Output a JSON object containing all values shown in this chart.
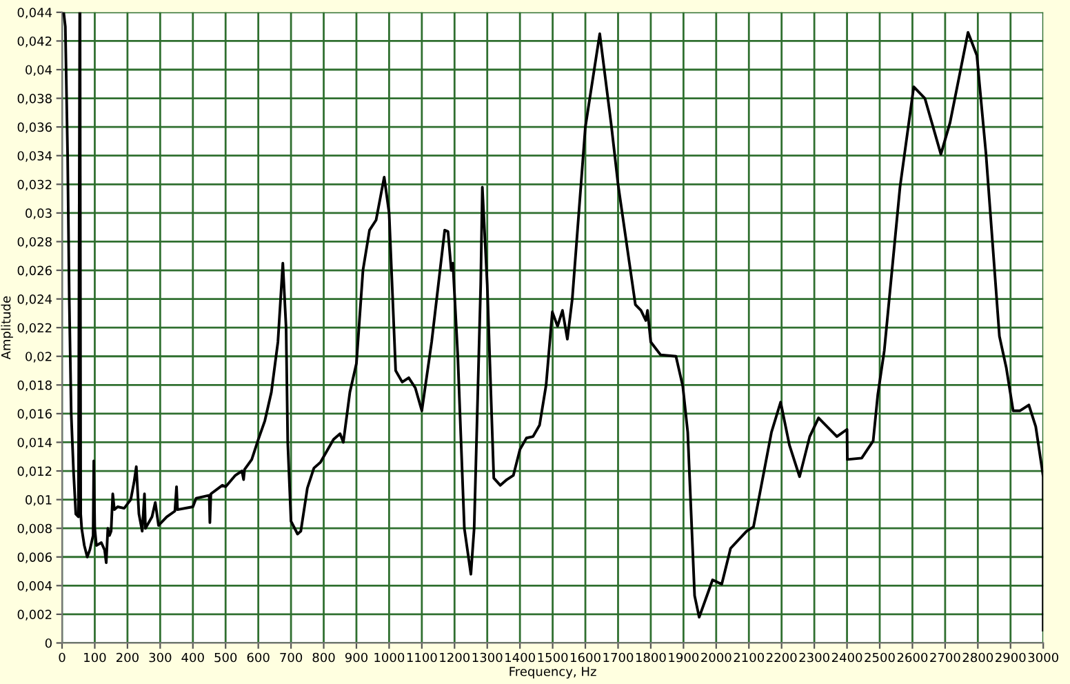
{
  "chart_data": {
    "type": "line",
    "xlabel": "Frequency, Hz",
    "ylabel": "Amplitude",
    "xlim": [
      0,
      3000
    ],
    "xticks": [
      0,
      100,
      200,
      300,
      400,
      500,
      600,
      700,
      800,
      900,
      1000,
      1100,
      1200,
      1300,
      1400,
      1500,
      1600,
      1700,
      1800,
      1900,
      2000,
      2100,
      2200,
      2300,
      2400,
      2500,
      2600,
      2700,
      2800,
      2900,
      3000
    ],
    "ylim": [
      0,
      0.044
    ],
    "yticks": [
      0,
      {
        "value": 0.002,
        "label": "0,002"
      },
      {
        "value": 0.004,
        "label": "0,004"
      },
      {
        "value": 0.006,
        "label": "0,006"
      },
      {
        "value": 0.008,
        "label": "0,008"
      },
      {
        "value": 0.01,
        "label": "0,01"
      },
      {
        "value": 0.012,
        "label": "0,012"
      },
      {
        "value": 0.014,
        "label": "0,014"
      },
      {
        "value": 0.016,
        "label": "0,016"
      },
      {
        "value": 0.018,
        "label": "0,018"
      },
      {
        "value": 0.02,
        "label": "0,02"
      },
      {
        "value": 0.022,
        "label": "0,022"
      },
      {
        "value": 0.024,
        "label": "0,024"
      },
      {
        "value": 0.026,
        "label": "0,026"
      },
      {
        "value": 0.028,
        "label": "0,028"
      },
      {
        "value": 0.03,
        "label": "0,03"
      },
      {
        "value": 0.032,
        "label": "0,032"
      },
      {
        "value": 0.034,
        "label": "0,034"
      },
      {
        "value": 0.036,
        "label": "0,036"
      },
      {
        "value": 0.038,
        "label": "0,038"
      },
      {
        "value": 0.04,
        "label": "0,04"
      },
      {
        "value": 0.042,
        "label": "0,042"
      },
      {
        "value": 0.044,
        "label": "0,044"
      }
    ],
    "grid": true,
    "marker": "none",
    "line_style": "solid",
    "series": [
      {
        "color": "#000000",
        "x": [
          5,
          10,
          17,
          22,
          28,
          35,
          42,
          50,
          54,
          55,
          57,
          60,
          68,
          77,
          85,
          95,
          97,
          100,
          105,
          120,
          130,
          135,
          140,
          145,
          150,
          155,
          160,
          170,
          190,
          210,
          220,
          227,
          235,
          245,
          252,
          255,
          275,
          285,
          295,
          320,
          345,
          350,
          353,
          400,
          410,
          450,
          452,
          455,
          490,
          500,
          530,
          550,
          555,
          558,
          580,
          600,
          620,
          640,
          660,
          675,
          685,
          690,
          700,
          720,
          730,
          750,
          770,
          790,
          830,
          850,
          860,
          880,
          900,
          920,
          940,
          960,
          985,
          1000,
          1020,
          1040,
          1060,
          1080,
          1100,
          1130,
          1170,
          1180,
          1190,
          1195,
          1210,
          1230,
          1250,
          1260,
          1280,
          1285,
          1300,
          1320,
          1340,
          1360,
          1380,
          1400,
          1420,
          1440,
          1460,
          1480,
          1499,
          1515,
          1530,
          1545,
          1560,
          1600,
          1644,
          1680,
          1700,
          1753,
          1770,
          1785,
          1790,
          1800,
          1830,
          1877,
          1898,
          1913,
          1934,
          1948,
          1989,
          2017,
          2044,
          2093,
          2114,
          2169,
          2197,
          2224,
          2255,
          2286,
          2313,
          2369,
          2400,
          2401,
          2445,
          2480,
          2494,
          2514,
          2562,
          2604,
          2638,
          2687,
          2715,
          2770,
          2797,
          2825,
          2866,
          2887,
          2908,
          2929,
          2956,
          2977,
          3000,
          3000
        ],
        "values": [
          0.044,
          0.043,
          0.034,
          0.024,
          0.016,
          0.012,
          0.009,
          0.0088,
          0.044,
          0.044,
          0.009,
          0.008,
          0.0068,
          0.006,
          0.0065,
          0.0075,
          0.0127,
          0.008,
          0.0068,
          0.007,
          0.0065,
          0.0056,
          0.008,
          0.0075,
          0.0078,
          0.0104,
          0.0093,
          0.0095,
          0.0094,
          0.01,
          0.0112,
          0.0123,
          0.009,
          0.0078,
          0.0104,
          0.008,
          0.0088,
          0.0098,
          0.0082,
          0.0088,
          0.0092,
          0.0109,
          0.0093,
          0.0095,
          0.0101,
          0.0103,
          0.0084,
          0.0104,
          0.011,
          0.0109,
          0.0117,
          0.012,
          0.0114,
          0.0121,
          0.0128,
          0.0142,
          0.0155,
          0.0175,
          0.021,
          0.0265,
          0.022,
          0.014,
          0.0085,
          0.0076,
          0.0078,
          0.0108,
          0.0122,
          0.0126,
          0.0142,
          0.0146,
          0.014,
          0.0175,
          0.0195,
          0.026,
          0.0288,
          0.0295,
          0.0325,
          0.03,
          0.019,
          0.0182,
          0.0185,
          0.0178,
          0.0162,
          0.021,
          0.0288,
          0.0287,
          0.026,
          0.0265,
          0.02,
          0.008,
          0.0048,
          0.008,
          0.025,
          0.0318,
          0.025,
          0.0115,
          0.011,
          0.0114,
          0.0117,
          0.0135,
          0.0143,
          0.0144,
          0.0152,
          0.018,
          0.0231,
          0.0221,
          0.0232,
          0.0212,
          0.024,
          0.036,
          0.0425,
          0.036,
          0.032,
          0.0236,
          0.0232,
          0.0225,
          0.0232,
          0.021,
          0.0201,
          0.02,
          0.0179,
          0.0147,
          0.0033,
          0.0018,
          0.0044,
          0.0041,
          0.0066,
          0.0078,
          0.0081,
          0.0147,
          0.0168,
          0.0138,
          0.0116,
          0.0144,
          0.0157,
          0.0144,
          0.0149,
          0.0128,
          0.0129,
          0.0141,
          0.0173,
          0.0204,
          0.0318,
          0.0388,
          0.038,
          0.0341,
          0.0363,
          0.0426,
          0.041,
          0.0341,
          0.0214,
          0.0192,
          0.0162,
          0.0162,
          0.0166,
          0.0151,
          0.0116,
          0.0009
        ]
      }
    ]
  }
}
